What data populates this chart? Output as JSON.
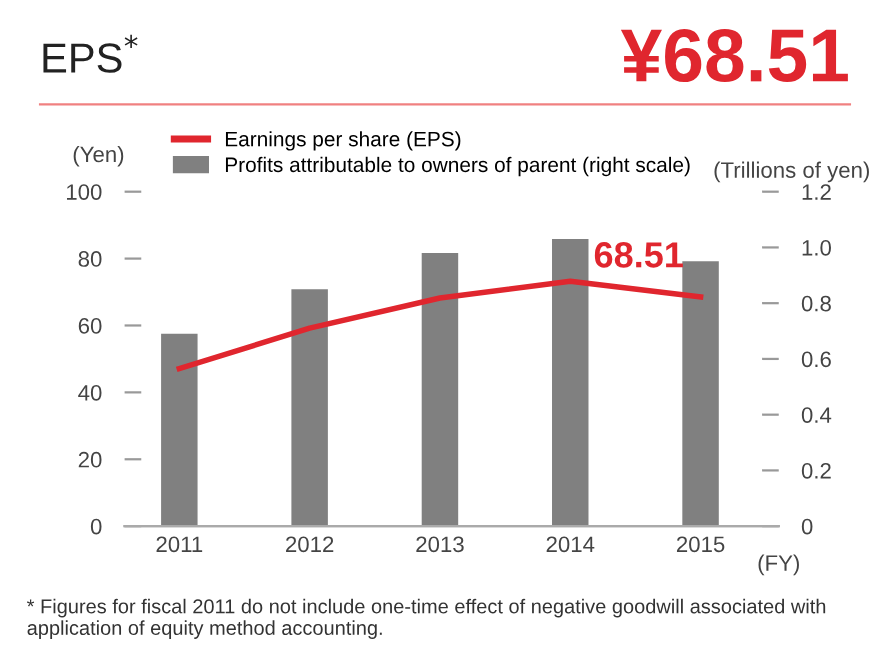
{
  "chart_data": {
    "type": "bar",
    "title": "EPS$^{*}$",
    "subtitle": "¥68.51",
    "xlabel": "(FY)",
    "ylabel": "(Yen)",
    "y2label": "(Trillions of yen)",
    "categories": [
      "2011",
      "2012",
      "2013",
      "2014",
      "2015"
    ],
    "series": [
      {
        "name": "Earnings per share (EPS)",
        "type": "line",
        "color": "#e0262e",
        "values": [
          47.1,
          59.2,
          68.2,
          73.2,
          68.51
        ]
      },
      {
        "name": "Profits attributable to owners of parent (right scale)",
        "axis": "y2",
        "color": "#808080",
        "values": [
          0.69,
          0.85,
          0.98,
          1.03,
          0.95
        ]
      }
    ],
    "ylim": [
      0,
      100
    ],
    "yticks": [
      0,
      20,
      40,
      60,
      80,
      100
    ],
    "y2lim": [
      0,
      1.2
    ],
    "y2ticks": [
      0,
      0.2,
      0.4,
      0.6,
      0.8,
      {
        "value": 1,
        "label": "1.0"
      },
      1.2
    ],
    "grid": false,
    "legend": "top",
    "marker": "none",
    "annotations": [
      {
        "text": "68.51",
        "x": "2015",
        "y": 68.51
      },
      "* Figures for fiscal 2011 do not include one-time effect of negative goodwill associated with application of equity method accounting."
    ]
  }
}
